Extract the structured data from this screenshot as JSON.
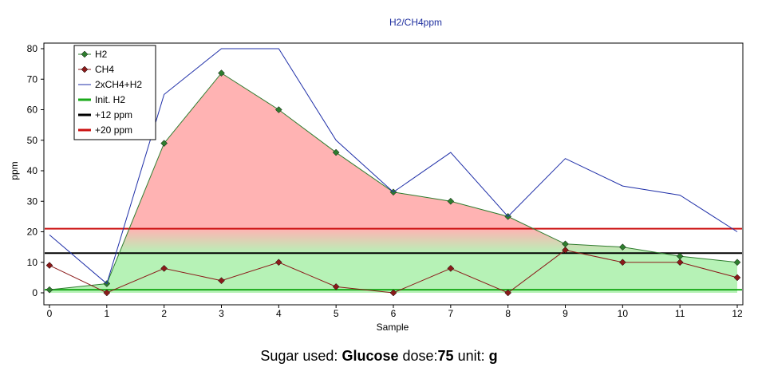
{
  "colors": {
    "h2": "#2e7d2e",
    "ch4": "#8b1a1a",
    "combined": "#1f2fa8",
    "init_h2": "#1aaa1a",
    "plus12": "#000000",
    "plus20": "#cc1111",
    "title": "#1f2f9f",
    "fill_red": "#ffb3b3",
    "fill_green": "#b6f2b6"
  },
  "chart_data": {
    "type": "line",
    "title": "H2/CH4ppm",
    "xlabel": "Sample",
    "ylabel": "ppm",
    "xlim": [
      0,
      12
    ],
    "ylim": [
      0,
      80
    ],
    "x": [
      0,
      1,
      2,
      3,
      4,
      5,
      6,
      7,
      8,
      9,
      10,
      11,
      12
    ],
    "xticks": [
      "0",
      "1",
      "2",
      "3",
      "4",
      "5",
      "6",
      "7",
      "8",
      "9",
      "10",
      "11",
      "12"
    ],
    "yticks": [
      "0",
      "10",
      "20",
      "30",
      "40",
      "50",
      "60",
      "70",
      "80"
    ],
    "series": [
      {
        "name": "H2",
        "color_key": "h2",
        "marker": "diamond",
        "values": [
          1,
          3,
          49,
          72,
          60,
          46,
          33,
          30,
          25,
          16,
          15,
          12,
          10
        ]
      },
      {
        "name": "CH4",
        "color_key": "ch4",
        "marker": "diamond",
        "values": [
          9,
          0,
          8,
          4,
          10,
          2,
          0,
          8,
          0,
          14,
          10,
          10,
          5
        ]
      },
      {
        "name": "2xCH4+H2",
        "color_key": "combined",
        "marker": "none",
        "values": [
          19,
          3,
          65,
          80,
          80,
          50,
          33,
          46,
          25,
          44,
          35,
          32,
          20
        ]
      }
    ],
    "reference_lines": [
      {
        "name": "Init. H2",
        "color_key": "init_h2",
        "value": 1
      },
      {
        "name": "+12 ppm",
        "color_key": "plus12",
        "value": 13
      },
      {
        "name": "+20 ppm",
        "color_key": "plus20",
        "value": 21
      }
    ]
  },
  "caption": {
    "label1": "Sugar used:",
    "sugar": "Glucose",
    "label2": "dose:",
    "dose": "75",
    "label3": "unit:",
    "unit": "g"
  }
}
